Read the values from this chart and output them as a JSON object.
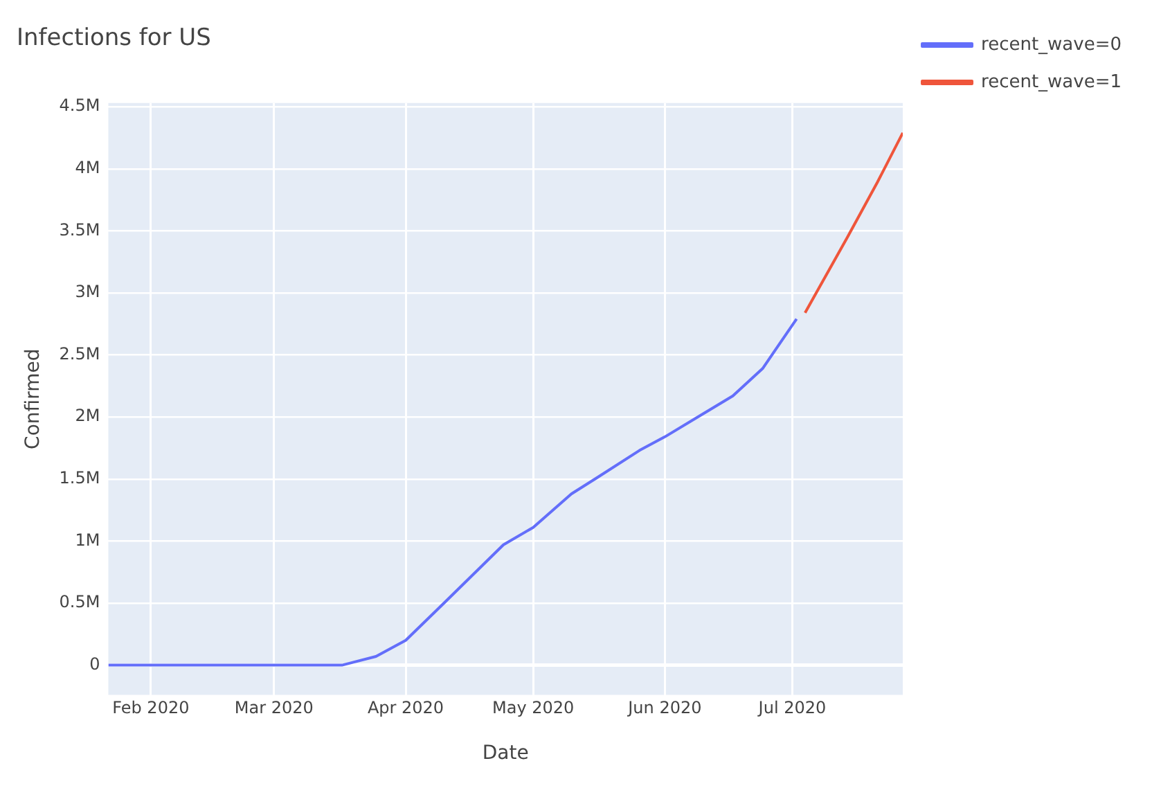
{
  "chart_data": {
    "type": "line",
    "title": "Infections for US",
    "xlabel": "Date",
    "ylabel": "Confirmed",
    "series": [
      {
        "name": "recent_wave=0",
        "color": "#636efa",
        "x": [
          "2020-01-22",
          "2020-02-15",
          "2020-03-01",
          "2020-03-17",
          "2020-03-25",
          "2020-04-01",
          "2020-04-10",
          "2020-04-24",
          "2020-05-01",
          "2020-05-10",
          "2020-05-16",
          "2020-05-26",
          "2020-06-01",
          "2020-06-17",
          "2020-06-24",
          "2020-07-02"
        ],
        "values": [
          0,
          0,
          0,
          0,
          70000,
          200000,
          500000,
          970000,
          1110000,
          1380000,
          1510000,
          1730000,
          1840000,
          2170000,
          2390000,
          2790000
        ]
      },
      {
        "name": "recent_wave=1",
        "color": "#ef553b",
        "x": [
          "2020-07-04",
          "2020-07-14",
          "2020-07-21",
          "2020-07-27"
        ],
        "values": [
          2840000,
          3450000,
          3890000,
          4290000
        ]
      }
    ],
    "xlim": [
      "2020-01-22",
      "2020-07-27"
    ],
    "xticks": [
      {
        "value": "2020-02-01",
        "label": "Feb 2020"
      },
      {
        "value": "2020-03-01",
        "label": "Mar 2020"
      },
      {
        "value": "2020-04-01",
        "label": "Apr 2020"
      },
      {
        "value": "2020-05-01",
        "label": "May 2020"
      },
      {
        "value": "2020-06-01",
        "label": "Jun 2020"
      },
      {
        "value": "2020-07-01",
        "label": "Jul 2020"
      }
    ],
    "ylim": [
      -240000,
      4530000
    ],
    "yticks": [
      0,
      {
        "value": 500000,
        "label": "0.5M"
      },
      {
        "value": 1000000,
        "label": "1M"
      },
      {
        "value": 1500000,
        "label": "1.5M"
      },
      {
        "value": 2000000,
        "label": "2M"
      },
      {
        "value": 2500000,
        "label": "2.5M"
      },
      {
        "value": 3000000,
        "label": "3M"
      },
      {
        "value": 3500000,
        "label": "3.5M"
      },
      {
        "value": 4000000,
        "label": "4M"
      },
      {
        "value": 4500000,
        "label": "4.5M"
      }
    ],
    "grid": true,
    "legend": "top right",
    "marker": "none",
    "line_style": "solid"
  }
}
